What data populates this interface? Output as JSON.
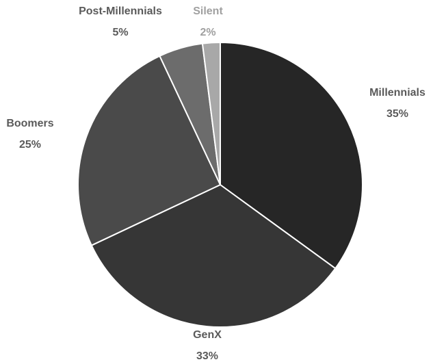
{
  "chart_data": {
    "type": "pie",
    "title": "",
    "slices": [
      {
        "name": "Millennials",
        "value": 35,
        "label_value": "35%",
        "color": "#262626"
      },
      {
        "name": "GenX",
        "value": 33,
        "label_value": "33%",
        "color": "#363636"
      },
      {
        "name": "Boomers",
        "value": 25,
        "label_value": "25%",
        "color": "#4a4a4a"
      },
      {
        "name": "Post-Millennials",
        "value": 5,
        "label_value": "5%",
        "color": "#6c6c6c"
      },
      {
        "name": "Silent",
        "value": 2,
        "label_value": "2%",
        "color": "#a8a8a8"
      }
    ],
    "start_angle": "12 o'clock",
    "direction": "clockwise",
    "label_color": "#5a5a5a",
    "silent_label_color": "#a0a0a0",
    "legend": "none",
    "data_labels": "outside, category name and percentage"
  }
}
